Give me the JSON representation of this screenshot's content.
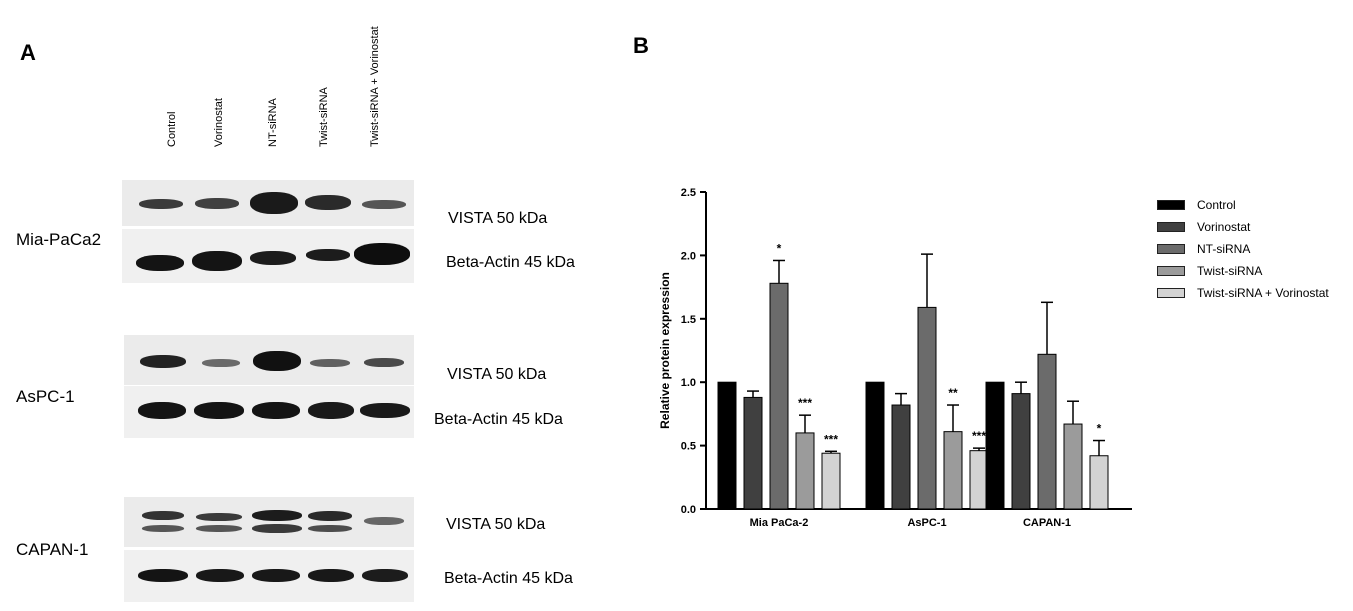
{
  "panels": {
    "a": "A",
    "b": "B"
  },
  "lanes": [
    "Control",
    "Vorinostat",
    "NT-siRNA",
    "Twist-siRNA",
    "Twist-siRNA + Vorinostat"
  ],
  "blots": [
    {
      "cell_line": "Mia-PaCa2",
      "vista_label": "VISTA 50 kDa",
      "actin_label": "Beta-Actin 45 kDa"
    },
    {
      "cell_line": "AsPC-1",
      "vista_label": "VISTA 50 kDa",
      "actin_label": "Beta-Actin 45 kDa"
    },
    {
      "cell_line": "CAPAN-1",
      "vista_label": "VISTA 50 kDa",
      "actin_label": "Beta-Actin 45 kDa"
    }
  ],
  "chart_data": {
    "type": "bar",
    "categories": [
      "Mia PaCa-2",
      "AsPC-1",
      "CAPAN-1"
    ],
    "ylabel": "Relative protein expression",
    "xlabel": "",
    "ylim": [
      0,
      2.5
    ],
    "yticks": [
      "0.0",
      "0.5",
      "1.0",
      "1.5",
      "2.0",
      "2.5"
    ],
    "legend_position": "right",
    "series": [
      {
        "name": "Control",
        "color": "#000000",
        "values": [
          1.0,
          1.0,
          1.0
        ],
        "errors": [
          0,
          0,
          0
        ],
        "sig": [
          "",
          "",
          ""
        ]
      },
      {
        "name": "Vorinostat",
        "color": "#404040",
        "values": [
          0.88,
          0.82,
          0.91
        ],
        "errors": [
          0.05,
          0.09,
          0.09
        ],
        "sig": [
          "",
          "",
          ""
        ]
      },
      {
        "name": "NT-siRNA",
        "color": "#6b6b6b",
        "values": [
          1.78,
          1.59,
          1.22
        ],
        "errors": [
          0.18,
          0.42,
          0.41
        ],
        "sig": [
          "*",
          "",
          ""
        ]
      },
      {
        "name": "Twist-siRNA",
        "color": "#9b9b9b",
        "values": [
          0.6,
          0.61,
          0.67
        ],
        "errors": [
          0.14,
          0.21,
          0.18
        ],
        "sig": [
          "***",
          "**",
          ""
        ]
      },
      {
        "name": "Twist-siRNA + Vorinostat",
        "color": "#d3d3d3",
        "values": [
          0.44,
          0.46,
          0.42
        ],
        "errors": [
          0.015,
          0.02,
          0.12
        ],
        "sig": [
          "***",
          "***",
          "*"
        ]
      }
    ]
  }
}
